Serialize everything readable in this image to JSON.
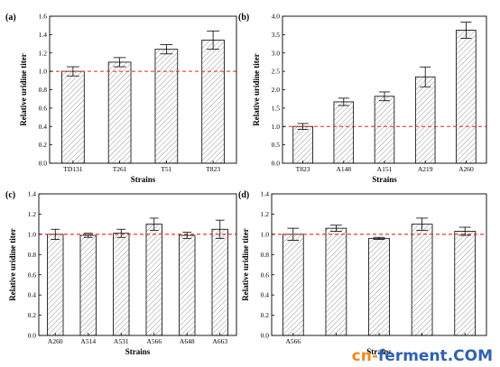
{
  "colors": {
    "bar_fill": "#ffffff",
    "hatch": "#8a8a8a",
    "ref_line": "#e8251e",
    "axis": "#000000"
  },
  "chart_data": [
    {
      "type": "bar",
      "panel": "(a)",
      "categories": [
        "TD131",
        "T261",
        "T51",
        "T823"
      ],
      "values": [
        1.0,
        1.1,
        1.24,
        1.34
      ],
      "errors": [
        0.05,
        0.05,
        0.05,
        0.1
      ],
      "xlabel": "Strains",
      "ylabel": "Relative uridine titer",
      "ylim": [
        0,
        1.6
      ],
      "yticks": [
        "0.0",
        "0.2",
        "0.4",
        "0.6",
        "0.8",
        "1.0",
        "1.2",
        "1.4",
        "1.6"
      ],
      "reference_line": 1.0
    },
    {
      "type": "bar",
      "panel": "(b)",
      "categories": [
        "T823",
        "A148",
        "A151",
        "A219",
        "A260"
      ],
      "values": [
        1.0,
        1.67,
        1.82,
        2.35,
        3.62
      ],
      "errors": [
        0.08,
        0.1,
        0.12,
        0.27,
        0.22
      ],
      "xlabel": "Strains",
      "ylabel": "Relative uridine titer",
      "ylim": [
        0,
        4.0
      ],
      "yticks": [
        "0.0",
        "0.5",
        "1.0",
        "1.5",
        "2.0",
        "2.5",
        "3.0",
        "3.5",
        "4.0"
      ],
      "reference_line": 1.0
    },
    {
      "type": "bar",
      "panel": "(c)",
      "categories": [
        "A260",
        "A514",
        "A531",
        "A566",
        "A648",
        "A663"
      ],
      "values": [
        1.0,
        0.99,
        1.01,
        1.1,
        0.99,
        1.05
      ],
      "errors": [
        0.05,
        0.02,
        0.04,
        0.06,
        0.03,
        0.09
      ],
      "xlabel": "Strains",
      "ylabel": "Relative uridine titer",
      "ylim": [
        0,
        1.4
      ],
      "yticks": [
        "0.0",
        "0.2",
        "0.4",
        "0.6",
        "0.8",
        "1.0",
        "1.2",
        "1.4"
      ],
      "reference_line": 1.0
    },
    {
      "type": "bar",
      "panel": "(d)",
      "categories": [
        "A566",
        "",
        "",
        "",
        ""
      ],
      "values": [
        1.0,
        1.06,
        0.96,
        1.1,
        1.03
      ],
      "errors": [
        0.06,
        0.03,
        0.01,
        0.06,
        0.04
      ],
      "xlabel": "Strains",
      "ylabel": "Relative uridine titer",
      "ylim": [
        0,
        1.4
      ],
      "yticks": [
        "0.0",
        "0.2",
        "0.4",
        "0.6",
        "0.8",
        "1.0",
        "1.2",
        "1.4"
      ],
      "reference_line": 1.0
    }
  ],
  "watermark": {
    "part1": "cn-",
    "part2": "ferment",
    "part3": ".COM"
  }
}
